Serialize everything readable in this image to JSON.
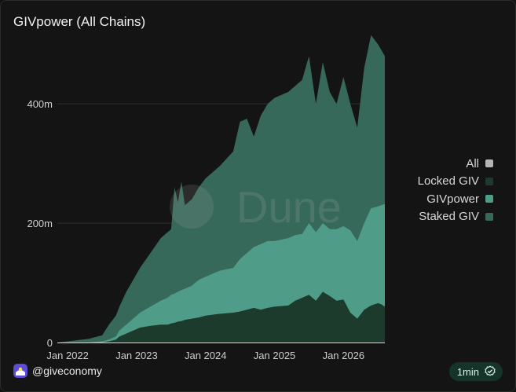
{
  "title": "GIVpower (All Chains)",
  "watermark": "Dune",
  "legend": [
    {
      "label": "All",
      "color": "#b5b5b5"
    },
    {
      "label": "Locked GIV",
      "color": "#1c3b2d"
    },
    {
      "label": "GIVpower",
      "color": "#4f9d88"
    },
    {
      "label": "Staked GIV",
      "color": "#37695b"
    }
  ],
  "footer": {
    "handle": "@giveconomy",
    "refresh": "1min"
  },
  "chart_data": {
    "type": "area",
    "title": "GIVpower (All Chains)",
    "x_ticks": [
      "Jan 2022",
      "Jan 2023",
      "Jan 2024",
      "Jan 2025",
      "Jan 2026"
    ],
    "y_ticks": [
      "0",
      "200m",
      "400m"
    ],
    "ylim": [
      0,
      520
    ],
    "x_unit": "year",
    "x": [
      2021.85,
      2022.0,
      2022.3,
      2022.5,
      2022.6,
      2022.7,
      2022.75,
      2022.85,
      2022.95,
      2023.05,
      2023.2,
      2023.35,
      2023.45,
      2023.5,
      2023.55,
      2023.6,
      2023.65,
      2023.7,
      2023.8,
      2023.9,
      2024.0,
      2024.2,
      2024.4,
      2024.5,
      2024.6,
      2024.7,
      2024.8,
      2024.9,
      2025.0,
      2025.2,
      2025.3,
      2025.4,
      2025.5,
      2025.6,
      2025.7,
      2025.8,
      2025.9,
      2026.0,
      2026.1,
      2026.2,
      2026.3,
      2026.4,
      2026.5,
      2026.55,
      2026.6
    ],
    "series": [
      {
        "name": "Staked GIV",
        "values": [
          0,
          2,
          6,
          12,
          30,
          45,
          60,
          85,
          105,
          125,
          150,
          175,
          185,
          190,
          260,
          235,
          270,
          230,
          240,
          260,
          275,
          295,
          320,
          370,
          375,
          345,
          380,
          400,
          410,
          420,
          430,
          440,
          480,
          400,
          470,
          420,
          400,
          445,
          400,
          360,
          460,
          515,
          500,
          490,
          480
        ]
      },
      {
        "name": "GIVpower",
        "values": [
          0,
          0,
          0,
          2,
          5,
          10,
          20,
          30,
          40,
          50,
          60,
          70,
          75,
          80,
          82,
          85,
          88,
          90,
          95,
          105,
          110,
          120,
          125,
          140,
          150,
          160,
          165,
          170,
          170,
          175,
          180,
          182,
          200,
          185,
          200,
          190,
          190,
          195,
          188,
          170,
          200,
          225,
          228,
          230,
          232
        ]
      },
      {
        "name": "Locked GIV",
        "values": [
          0,
          0,
          0,
          0,
          2,
          5,
          10,
          15,
          20,
          25,
          28,
          30,
          30,
          32,
          33,
          35,
          36,
          38,
          40,
          42,
          45,
          48,
          50,
          52,
          55,
          58,
          55,
          58,
          60,
          62,
          70,
          75,
          80,
          70,
          85,
          78,
          70,
          72,
          50,
          40,
          55,
          62,
          66,
          64,
          60
        ]
      }
    ]
  }
}
